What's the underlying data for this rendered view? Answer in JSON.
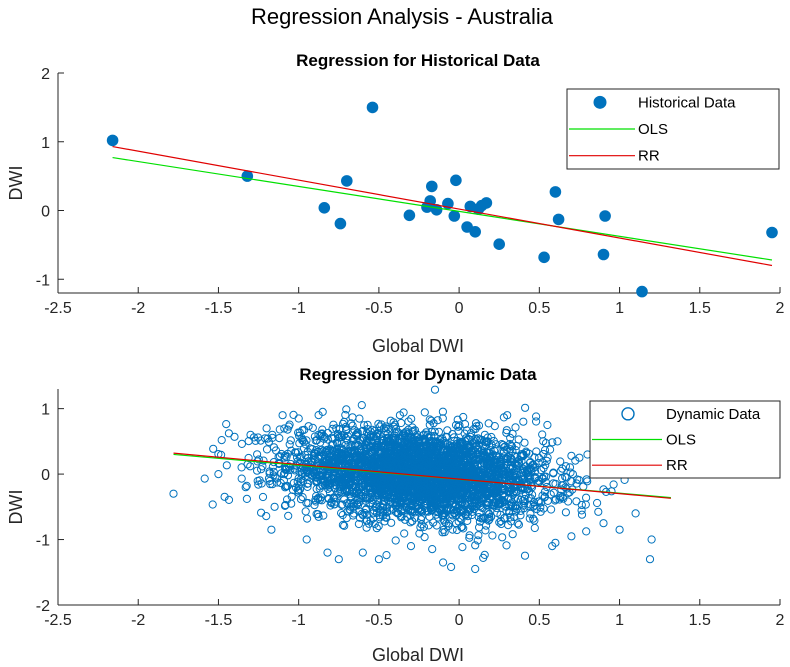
{
  "figure": {
    "suptitle": "Regression Analysis - Australia"
  },
  "colors": {
    "marker": "#0072BD",
    "ols": "#00E000",
    "rr": "#E00000",
    "axis": "#262626"
  },
  "chart_data": [
    {
      "type": "scatter",
      "title": "Regression for Historical Data",
      "xlabel": "Global DWI",
      "ylabel": "DWI",
      "xlim": [
        -2.5,
        2
      ],
      "ylim": [
        -1.2,
        2
      ],
      "xticks": [
        -2.5,
        -2,
        -1.5,
        -1,
        -0.5,
        0,
        0.5,
        1,
        1.5,
        2
      ],
      "xtick_labels": [
        "-2.5",
        "-2",
        "-1.5",
        "-1",
        "-0.5",
        "0",
        "0.5",
        "1",
        "1.5",
        "2"
      ],
      "yticks": [
        -1,
        0,
        1,
        2
      ],
      "ytick_labels": [
        "-1",
        "0",
        "1",
        "2"
      ],
      "grid": false,
      "legend_position": "top-right",
      "series": [
        {
          "name": "Historical Data",
          "marker": "filled-circle",
          "points": [
            [
              -2.16,
              1.02
            ],
            [
              -1.32,
              0.5
            ],
            [
              -0.84,
              0.04
            ],
            [
              -0.74,
              -0.19
            ],
            [
              -0.7,
              0.43
            ],
            [
              -0.54,
              1.5
            ],
            [
              -0.31,
              -0.07
            ],
            [
              -0.2,
              0.05
            ],
            [
              -0.18,
              0.14
            ],
            [
              -0.17,
              0.35
            ],
            [
              -0.14,
              0.01
            ],
            [
              -0.07,
              0.1
            ],
            [
              -0.03,
              -0.08
            ],
            [
              -0.02,
              0.44
            ],
            [
              0.05,
              -0.24
            ],
            [
              0.07,
              0.06
            ],
            [
              0.1,
              -0.31
            ],
            [
              0.12,
              0.02
            ],
            [
              0.14,
              0.07
            ],
            [
              0.17,
              0.11
            ],
            [
              0.25,
              -0.49
            ],
            [
              0.53,
              -0.68
            ],
            [
              0.6,
              0.27
            ],
            [
              0.62,
              -0.13
            ],
            [
              0.9,
              -0.64
            ],
            [
              0.91,
              -0.08
            ],
            [
              1.14,
              -1.18
            ],
            [
              1.95,
              -0.32
            ]
          ]
        },
        {
          "name": "OLS",
          "type": "line",
          "x": [
            -2.16,
            1.95
          ],
          "y": [
            0.77,
            -0.72
          ]
        },
        {
          "name": "RR",
          "type": "line",
          "x": [
            -2.16,
            1.95
          ],
          "y": [
            0.93,
            -0.8
          ]
        }
      ]
    },
    {
      "type": "scatter",
      "title": "Regression for Dynamic Data",
      "xlabel": "Global DWI",
      "ylabel": "DWI",
      "xlim": [
        -2.5,
        2
      ],
      "ylim": [
        -2,
        1.3
      ],
      "xticks": [
        -2.5,
        -2,
        -1.5,
        -1,
        -0.5,
        0,
        0.5,
        1,
        1.5,
        2
      ],
      "xtick_labels": [
        "-2.5",
        "-2",
        "-1.5",
        "-1",
        "-0.5",
        "0",
        "0.5",
        "1",
        "1.5",
        "2"
      ],
      "yticks": [
        -2,
        -1,
        0,
        1
      ],
      "ytick_labels": [
        "-2",
        "-1",
        "0",
        "1"
      ],
      "grid": false,
      "legend_position": "top-right",
      "series": [
        {
          "name": "Dynamic Data",
          "marker": "open-circle",
          "cloud": {
            "count": 3500,
            "x_mean": -0.25,
            "x_sd": 0.4,
            "x_range": [
              -1.78,
              1.2
            ],
            "y_mean": 0.0,
            "y_sd": 0.33,
            "y_range": [
              -1.45,
              1.3
            ],
            "slope": -0.18
          },
          "points": [
            [
              -1.78,
              -0.3
            ],
            [
              -1.5,
              0.0
            ],
            [
              -1.4,
              0.57
            ],
            [
              -1.48,
              0.52
            ],
            [
              -1.33,
              -0.2
            ],
            [
              -1.3,
              0.6
            ],
            [
              -1.2,
              0.7
            ],
            [
              -1.17,
              -0.85
            ],
            [
              -1.15,
              -0.5
            ],
            [
              -1.1,
              0.9
            ],
            [
              -1.0,
              0.85
            ],
            [
              -0.95,
              -1.0
            ],
            [
              -0.85,
              0.95
            ],
            [
              -0.82,
              -1.2
            ],
            [
              -0.75,
              -1.3
            ],
            [
              -0.6,
              -1.2
            ],
            [
              -0.5,
              -1.3
            ],
            [
              -0.3,
              -1.1
            ],
            [
              -0.15,
              1.29
            ],
            [
              -0.1,
              -1.35
            ],
            [
              -0.05,
              -1.42
            ],
            [
              0.1,
              -1.45
            ],
            [
              0.15,
              -1.28
            ],
            [
              0.3,
              0.9
            ],
            [
              0.4,
              0.8
            ],
            [
              0.48,
              0.88
            ],
            [
              0.55,
              0.75
            ],
            [
              0.6,
              -1.05
            ],
            [
              0.7,
              -0.95
            ],
            [
              0.8,
              0.3
            ],
            [
              0.9,
              -0.75
            ],
            [
              1.0,
              -0.85
            ],
            [
              1.1,
              -0.6
            ],
            [
              1.2,
              -1.0
            ],
            [
              1.19,
              -1.3
            ],
            [
              0.75,
              0.25
            ],
            [
              0.7,
              0.28
            ]
          ]
        },
        {
          "name": "OLS",
          "type": "line",
          "x": [
            -1.78,
            1.32
          ],
          "y": [
            0.3,
            -0.36
          ]
        },
        {
          "name": "RR",
          "type": "line",
          "x": [
            -1.78,
            1.32
          ],
          "y": [
            0.32,
            -0.37
          ]
        }
      ]
    }
  ]
}
